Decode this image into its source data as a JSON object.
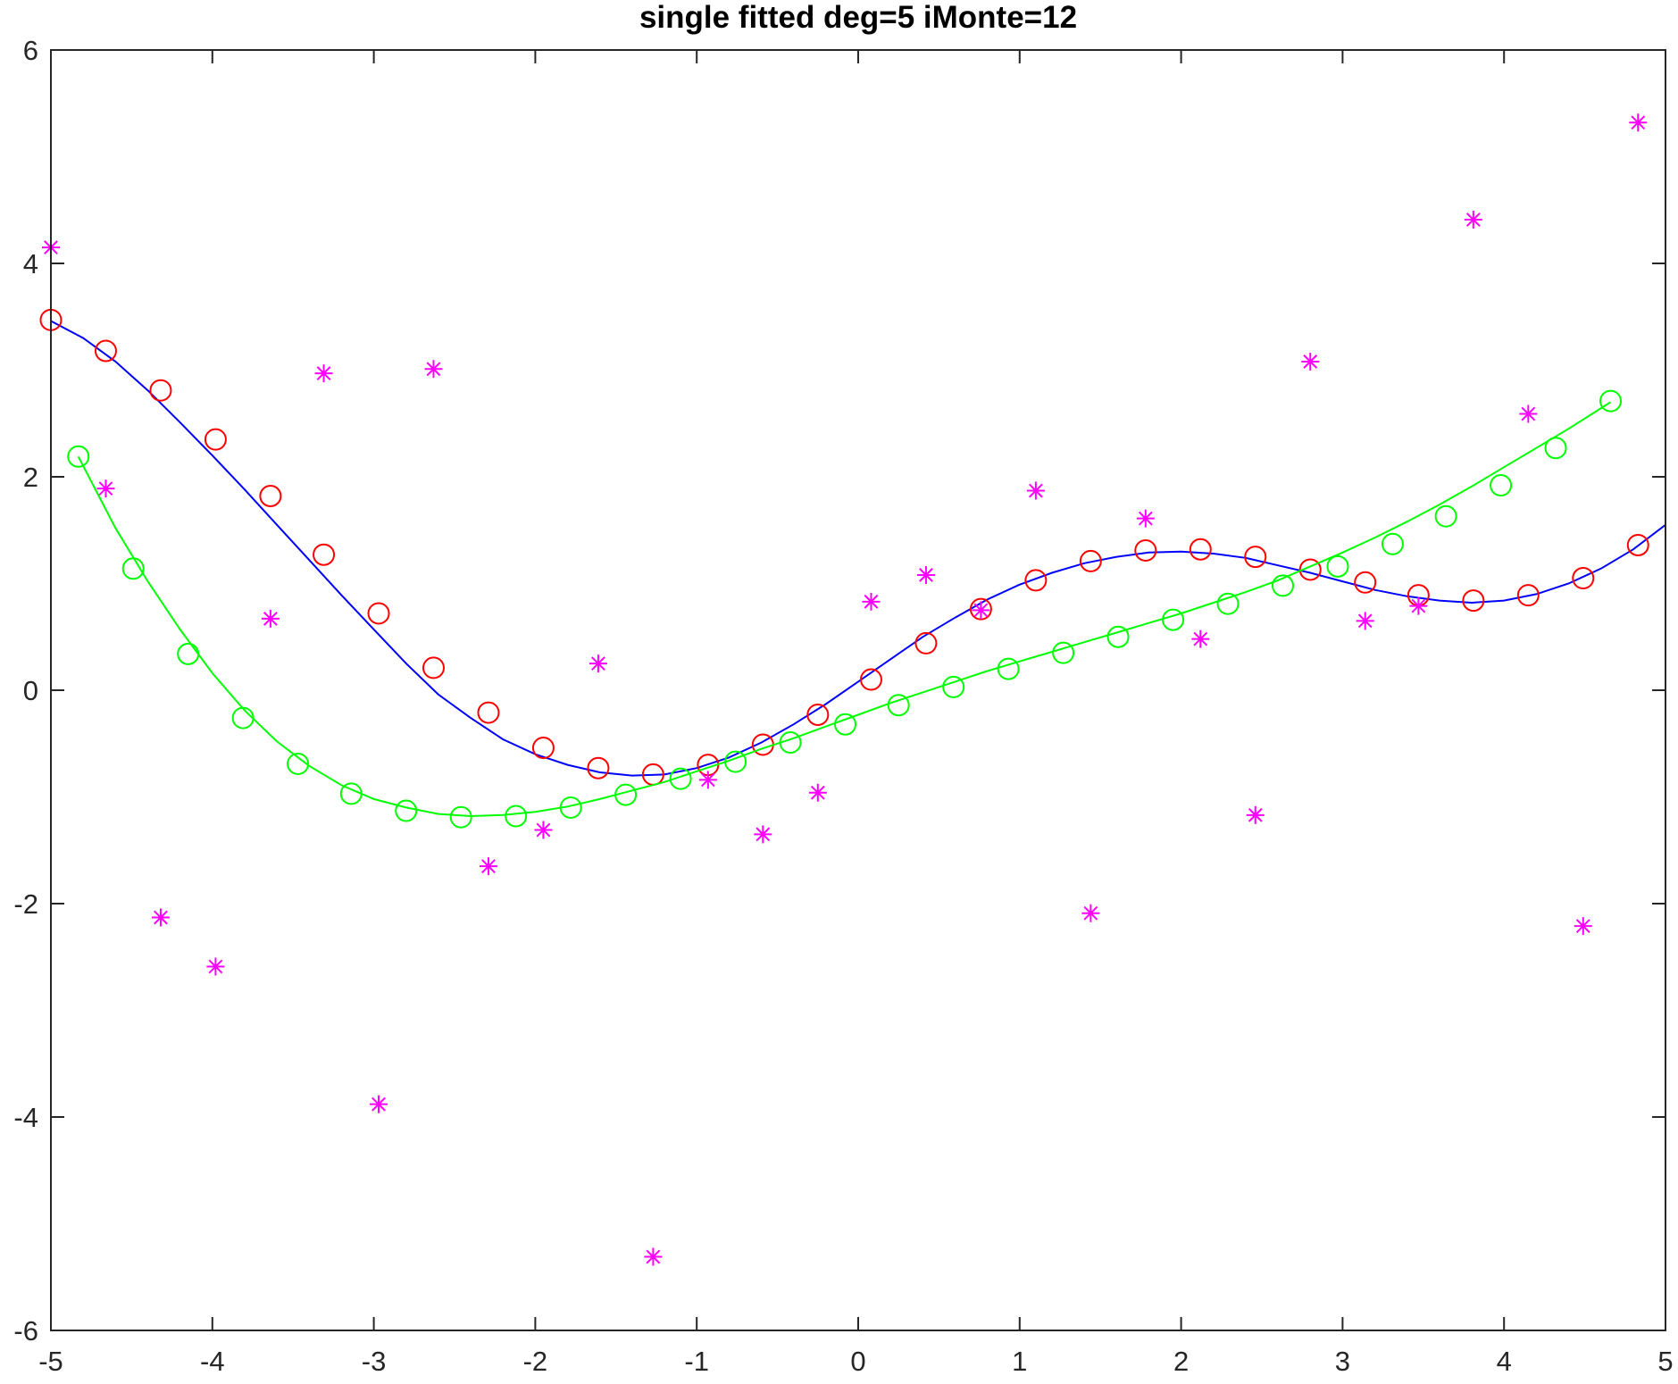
{
  "chart_data": {
    "type": "scatter",
    "title": "single fitted deg=5 iMonte=12",
    "xlabel": "",
    "ylabel": "",
    "xlim": [
      -5,
      5
    ],
    "ylim": [
      -6,
      6
    ],
    "xticks": [
      -5,
      -4,
      -3,
      -2,
      -1,
      0,
      1,
      2,
      3,
      4,
      5
    ],
    "yticks": [
      -6,
      -4,
      -2,
      0,
      2,
      4,
      6
    ],
    "grid": false,
    "legend": "none",
    "series": [
      {
        "style": "line",
        "color": "#0000ff",
        "x": [
          -5,
          -4.8,
          -4.6,
          -4.4,
          -4.2,
          -4.0,
          -3.8,
          -3.6,
          -3.4,
          -3.2,
          -3.0,
          -2.8,
          -2.6,
          -2.4,
          -2.2,
          -2.0,
          -1.8,
          -1.6,
          -1.4,
          -1.2,
          -1.0,
          -0.8,
          -0.6,
          -0.4,
          -0.2,
          0.0,
          0.2,
          0.4,
          0.6,
          0.8,
          1.0,
          1.2,
          1.4,
          1.6,
          1.8,
          2.0,
          2.2,
          2.4,
          2.6,
          2.8,
          3.0,
          3.2,
          3.4,
          3.6,
          3.8,
          4.0,
          4.2,
          4.4,
          4.6,
          4.8,
          5.0
        ],
        "y": [
          3.46,
          3.3,
          3.08,
          2.81,
          2.51,
          2.2,
          1.88,
          1.55,
          1.22,
          0.89,
          0.57,
          0.25,
          -0.04,
          -0.26,
          -0.46,
          -0.6,
          -0.7,
          -0.77,
          -0.8,
          -0.79,
          -0.73,
          -0.63,
          -0.49,
          -0.32,
          -0.13,
          0.08,
          0.29,
          0.5,
          0.68,
          0.85,
          0.99,
          1.1,
          1.19,
          1.25,
          1.29,
          1.3,
          1.28,
          1.24,
          1.17,
          1.1,
          1.02,
          0.94,
          0.88,
          0.84,
          0.82,
          0.84,
          0.9,
          1.0,
          1.14,
          1.32,
          1.55
        ]
      },
      {
        "style": "markers",
        "marker": "circle",
        "color": "#ff0000",
        "x": [
          -5.0,
          -4.66,
          -4.32,
          -3.98,
          -3.64,
          -3.31,
          -2.97,
          -2.63,
          -2.29,
          -1.95,
          -1.61,
          -1.27,
          -0.93,
          -0.59,
          -0.25,
          0.08,
          0.42,
          0.76,
          1.1,
          1.44,
          1.78,
          2.12,
          2.46,
          2.8,
          3.14,
          3.47,
          3.81,
          4.15,
          4.49,
          4.83
        ],
        "y": [
          3.47,
          3.18,
          2.81,
          2.35,
          1.82,
          1.27,
          0.72,
          0.21,
          -0.21,
          -0.54,
          -0.73,
          -0.79,
          -0.7,
          -0.51,
          -0.23,
          0.1,
          0.44,
          0.76,
          1.03,
          1.21,
          1.31,
          1.32,
          1.25,
          1.13,
          1.01,
          0.89,
          0.84,
          0.89,
          1.05,
          1.36
        ]
      },
      {
        "style": "line",
        "color": "#00ff00",
        "x": [
          -4.83,
          -4.6,
          -4.4,
          -4.2,
          -4.0,
          -3.8,
          -3.6,
          -3.4,
          -3.2,
          -3.0,
          -2.8,
          -2.6,
          -2.4,
          -2.2,
          -2.0,
          -1.8,
          -1.6,
          -1.4,
          -1.2,
          -1.0,
          -0.8,
          -0.6,
          -0.4,
          -0.2,
          0.0,
          0.2,
          0.4,
          0.6,
          0.8,
          1.0,
          1.2,
          1.4,
          1.6,
          1.8,
          2.0,
          2.2,
          2.4,
          2.6,
          2.8,
          3.0,
          3.2,
          3.4,
          3.6,
          3.8,
          4.0,
          4.2,
          4.4,
          4.66
        ],
        "y": [
          2.19,
          1.52,
          1.02,
          0.57,
          0.16,
          -0.19,
          -0.48,
          -0.71,
          -0.89,
          -1.02,
          -1.1,
          -1.16,
          -1.18,
          -1.17,
          -1.14,
          -1.09,
          -1.02,
          -0.94,
          -0.86,
          -0.76,
          -0.66,
          -0.55,
          -0.45,
          -0.34,
          -0.23,
          -0.12,
          -0.02,
          0.08,
          0.18,
          0.27,
          0.36,
          0.45,
          0.54,
          0.63,
          0.72,
          0.82,
          0.92,
          1.03,
          1.16,
          1.29,
          1.43,
          1.58,
          1.74,
          1.91,
          2.09,
          2.27,
          2.45,
          2.7
        ]
      },
      {
        "style": "markers",
        "marker": "circle",
        "color": "#00ff00",
        "x": [
          -4.83,
          -4.49,
          -4.15,
          -3.81,
          -3.47,
          -3.14,
          -2.8,
          -2.46,
          -2.12,
          -1.78,
          -1.44,
          -1.1,
          -0.76,
          -0.42,
          -0.08,
          0.25,
          0.59,
          0.93,
          1.27,
          1.61,
          1.95,
          2.29,
          2.63,
          2.97,
          3.31,
          3.64,
          3.98,
          4.32,
          4.66
        ],
        "y": [
          2.19,
          1.14,
          0.34,
          -0.26,
          -0.69,
          -0.97,
          -1.13,
          -1.19,
          -1.18,
          -1.1,
          -0.98,
          -0.83,
          -0.67,
          -0.49,
          -0.32,
          -0.14,
          0.03,
          0.2,
          0.35,
          0.5,
          0.66,
          0.81,
          0.98,
          1.16,
          1.37,
          1.63,
          1.92,
          2.27,
          2.71
        ]
      },
      {
        "style": "markers",
        "marker": "asterisk",
        "color": "#ff00ff",
        "x": [
          -5.0,
          -4.66,
          -4.32,
          -3.98,
          -3.64,
          -3.31,
          -2.97,
          -2.63,
          -2.29,
          -1.95,
          -1.61,
          -1.27,
          -0.93,
          -0.59,
          -0.25,
          0.08,
          0.42,
          0.76,
          1.1,
          1.44,
          1.78,
          2.12,
          2.46,
          2.8,
          3.14,
          3.47,
          3.81,
          4.15,
          4.49,
          4.83
        ],
        "y": [
          4.15,
          1.89,
          -2.13,
          -2.59,
          0.67,
          2.97,
          -3.88,
          3.01,
          -1.65,
          -1.31,
          0.25,
          -5.31,
          -0.84,
          -1.35,
          -0.96,
          0.83,
          1.08,
          0.75,
          1.87,
          -2.09,
          1.61,
          0.48,
          -1.17,
          3.08,
          0.65,
          0.79,
          4.41,
          2.59,
          -2.21,
          5.32
        ]
      }
    ]
  }
}
